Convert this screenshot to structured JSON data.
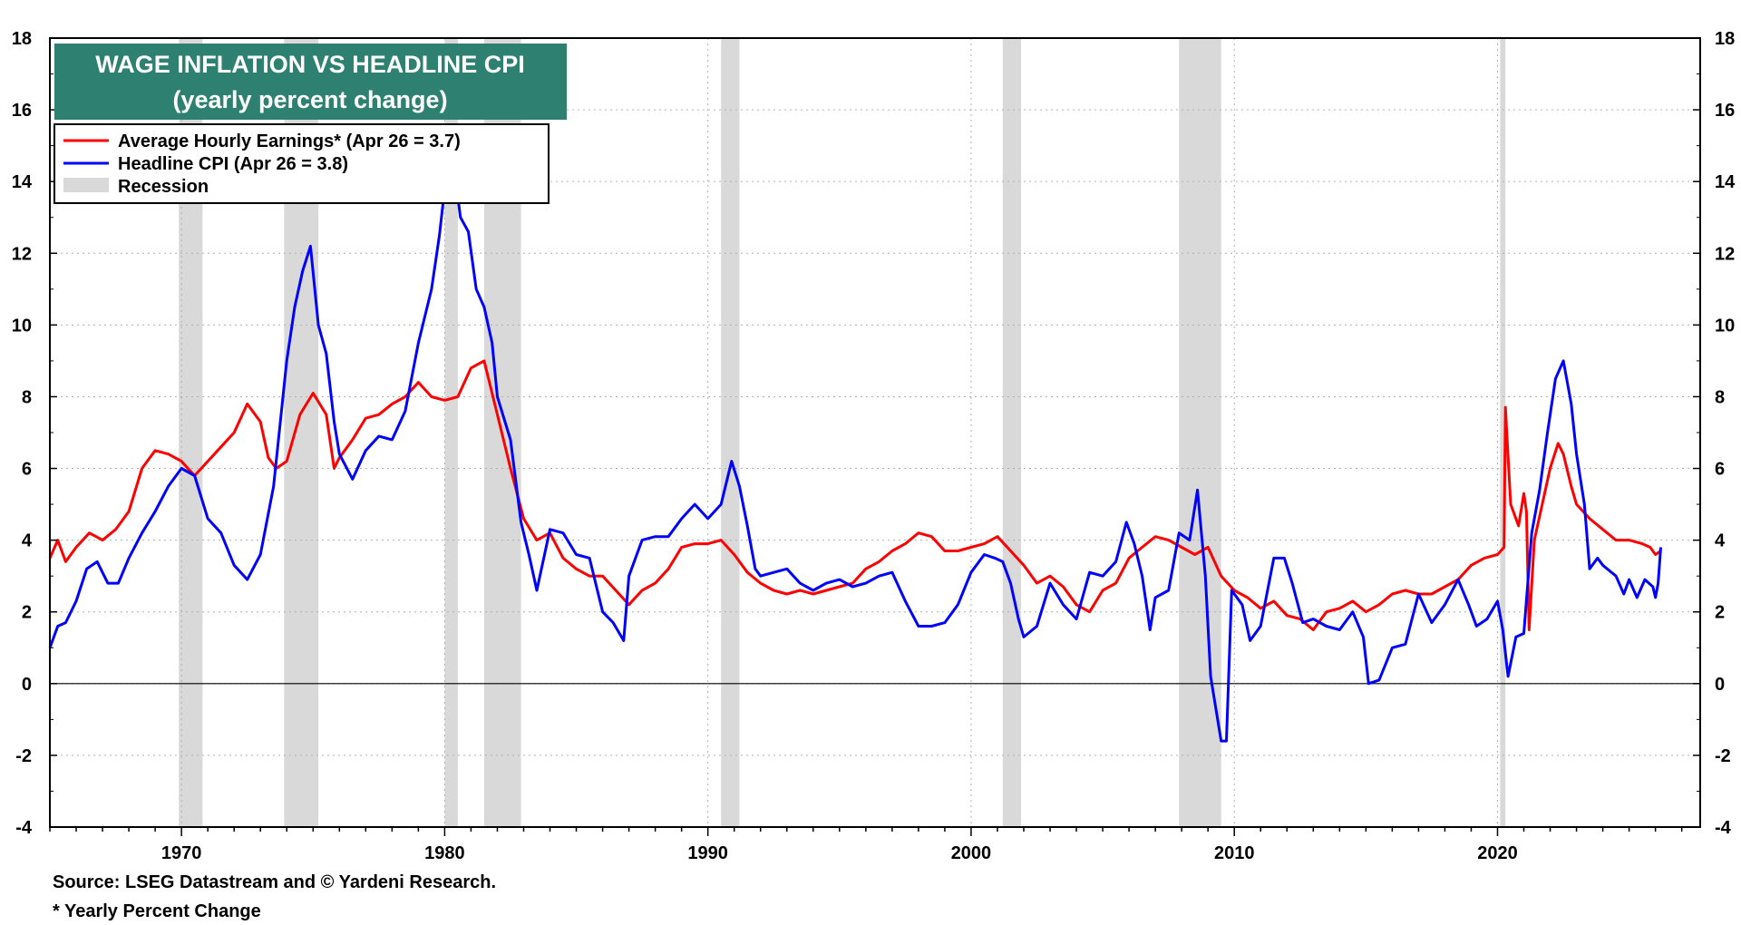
{
  "chart_data": {
    "type": "line",
    "title": "WAGE INFLATION VS HEADLINE CPI",
    "subtitle": "(yearly percent change)",
    "xlim": [
      1965,
      2027.7
    ],
    "ylim": [
      -4,
      18
    ],
    "x_ticks": [
      1970,
      1980,
      1990,
      2000,
      2010,
      2020
    ],
    "y_ticks": [
      -4,
      -2,
      0,
      2,
      4,
      6,
      8,
      10,
      12,
      14,
      16,
      18
    ],
    "grid": true,
    "legend_position": "top-left",
    "recession_label": "Recession",
    "recessions": [
      [
        1969.9,
        1970.8
      ],
      [
        1973.9,
        1975.2
      ],
      [
        1980.0,
        1980.5
      ],
      [
        1981.5,
        1982.9
      ],
      [
        1990.5,
        1991.2
      ],
      [
        2001.2,
        2001.9
      ],
      [
        2007.9,
        2009.5
      ],
      [
        2020.1,
        2020.3
      ]
    ],
    "colors": {
      "wage": "#ff0000",
      "cpi": "#0000ff",
      "recession": "#d9d9d9",
      "title_bg": "#2e8070"
    },
    "series": [
      {
        "name": "Average Hourly Earnings* (Apr 26 = 3.7)",
        "key": "wage",
        "points": [
          [
            1965.0,
            3.5
          ],
          [
            1965.3,
            4.0
          ],
          [
            1965.6,
            3.4
          ],
          [
            1966.0,
            3.8
          ],
          [
            1966.5,
            4.2
          ],
          [
            1967.0,
            4.0
          ],
          [
            1967.5,
            4.3
          ],
          [
            1968.0,
            4.8
          ],
          [
            1968.5,
            6.0
          ],
          [
            1969.0,
            6.5
          ],
          [
            1969.5,
            6.4
          ],
          [
            1970.0,
            6.2
          ],
          [
            1970.5,
            5.8
          ],
          [
            1971.0,
            6.2
          ],
          [
            1971.5,
            6.6
          ],
          [
            1972.0,
            7.0
          ],
          [
            1972.5,
            7.8
          ],
          [
            1973.0,
            7.3
          ],
          [
            1973.3,
            6.3
          ],
          [
            1973.6,
            6.0
          ],
          [
            1974.0,
            6.2
          ],
          [
            1974.5,
            7.5
          ],
          [
            1975.0,
            8.1
          ],
          [
            1975.5,
            7.5
          ],
          [
            1975.8,
            6.0
          ],
          [
            1976.0,
            6.3
          ],
          [
            1976.5,
            6.8
          ],
          [
            1977.0,
            7.4
          ],
          [
            1977.5,
            7.5
          ],
          [
            1978.0,
            7.8
          ],
          [
            1978.5,
            8.0
          ],
          [
            1979.0,
            8.4
          ],
          [
            1979.5,
            8.0
          ],
          [
            1980.0,
            7.9
          ],
          [
            1980.5,
            8.0
          ],
          [
            1981.0,
            8.8
          ],
          [
            1981.5,
            9.0
          ],
          [
            1982.0,
            7.5
          ],
          [
            1982.5,
            6.0
          ],
          [
            1983.0,
            4.6
          ],
          [
            1983.5,
            4.0
          ],
          [
            1984.0,
            4.2
          ],
          [
            1984.5,
            3.5
          ],
          [
            1985.0,
            3.2
          ],
          [
            1985.5,
            3.0
          ],
          [
            1986.0,
            3.0
          ],
          [
            1986.5,
            2.6
          ],
          [
            1987.0,
            2.2
          ],
          [
            1987.5,
            2.6
          ],
          [
            1988.0,
            2.8
          ],
          [
            1988.5,
            3.2
          ],
          [
            1989.0,
            3.8
          ],
          [
            1989.5,
            3.9
          ],
          [
            1990.0,
            3.9
          ],
          [
            1990.5,
            4.0
          ],
          [
            1991.0,
            3.6
          ],
          [
            1991.5,
            3.1
          ],
          [
            1992.0,
            2.8
          ],
          [
            1992.5,
            2.6
          ],
          [
            1993.0,
            2.5
          ],
          [
            1993.5,
            2.6
          ],
          [
            1994.0,
            2.5
          ],
          [
            1994.5,
            2.6
          ],
          [
            1995.0,
            2.7
          ],
          [
            1995.5,
            2.8
          ],
          [
            1996.0,
            3.2
          ],
          [
            1996.5,
            3.4
          ],
          [
            1997.0,
            3.7
          ],
          [
            1997.5,
            3.9
          ],
          [
            1998.0,
            4.2
          ],
          [
            1998.5,
            4.1
          ],
          [
            1999.0,
            3.7
          ],
          [
            1999.5,
            3.7
          ],
          [
            2000.0,
            3.8
          ],
          [
            2000.5,
            3.9
          ],
          [
            2001.0,
            4.1
          ],
          [
            2001.5,
            3.7
          ],
          [
            2002.0,
            3.3
          ],
          [
            2002.5,
            2.8
          ],
          [
            2003.0,
            3.0
          ],
          [
            2003.5,
            2.7
          ],
          [
            2004.0,
            2.2
          ],
          [
            2004.5,
            2.0
          ],
          [
            2005.0,
            2.6
          ],
          [
            2005.5,
            2.8
          ],
          [
            2006.0,
            3.5
          ],
          [
            2006.5,
            3.8
          ],
          [
            2007.0,
            4.1
          ],
          [
            2007.5,
            4.0
          ],
          [
            2008.0,
            3.8
          ],
          [
            2008.5,
            3.6
          ],
          [
            2009.0,
            3.8
          ],
          [
            2009.5,
            3.0
          ],
          [
            2010.0,
            2.6
          ],
          [
            2010.5,
            2.4
          ],
          [
            2011.0,
            2.1
          ],
          [
            2011.5,
            2.3
          ],
          [
            2012.0,
            1.9
          ],
          [
            2012.5,
            1.8
          ],
          [
            2013.0,
            1.5
          ],
          [
            2013.5,
            2.0
          ],
          [
            2014.0,
            2.1
          ],
          [
            2014.5,
            2.3
          ],
          [
            2015.0,
            2.0
          ],
          [
            2015.5,
            2.2
          ],
          [
            2016.0,
            2.5
          ],
          [
            2016.5,
            2.6
          ],
          [
            2017.0,
            2.5
          ],
          [
            2017.5,
            2.5
          ],
          [
            2018.0,
            2.7
          ],
          [
            2018.5,
            2.9
          ],
          [
            2019.0,
            3.3
          ],
          [
            2019.5,
            3.5
          ],
          [
            2020.0,
            3.6
          ],
          [
            2020.25,
            3.8
          ],
          [
            2020.3,
            7.7
          ],
          [
            2020.5,
            5.0
          ],
          [
            2020.8,
            4.4
          ],
          [
            2021.0,
            5.3
          ],
          [
            2021.1,
            4.8
          ],
          [
            2021.2,
            1.5
          ],
          [
            2021.4,
            4.0
          ],
          [
            2021.7,
            5.0
          ],
          [
            2022.0,
            6.0
          ],
          [
            2022.3,
            6.7
          ],
          [
            2022.5,
            6.4
          ],
          [
            2022.8,
            5.5
          ],
          [
            2023.0,
            5.0
          ],
          [
            2023.5,
            4.6
          ],
          [
            2024.0,
            4.3
          ],
          [
            2024.5,
            4.0
          ],
          [
            2025.0,
            4.0
          ],
          [
            2025.5,
            3.9
          ],
          [
            2025.8,
            3.8
          ],
          [
            2026.0,
            3.6
          ],
          [
            2026.2,
            3.7
          ]
        ]
      },
      {
        "name": "Headline CPI (Apr 26 = 3.8)",
        "key": "cpi",
        "points": [
          [
            1965.0,
            1.0
          ],
          [
            1965.3,
            1.6
          ],
          [
            1965.6,
            1.7
          ],
          [
            1966.0,
            2.3
          ],
          [
            1966.4,
            3.2
          ],
          [
            1966.8,
            3.4
          ],
          [
            1967.2,
            2.8
          ],
          [
            1967.6,
            2.8
          ],
          [
            1968.0,
            3.5
          ],
          [
            1968.5,
            4.2
          ],
          [
            1969.0,
            4.8
          ],
          [
            1969.5,
            5.5
          ],
          [
            1970.0,
            6.0
          ],
          [
            1970.5,
            5.8
          ],
          [
            1971.0,
            4.6
          ],
          [
            1971.5,
            4.2
          ],
          [
            1972.0,
            3.3
          ],
          [
            1972.5,
            2.9
          ],
          [
            1973.0,
            3.6
          ],
          [
            1973.5,
            5.5
          ],
          [
            1974.0,
            9.0
          ],
          [
            1974.3,
            10.5
          ],
          [
            1974.6,
            11.5
          ],
          [
            1974.9,
            12.2
          ],
          [
            1975.2,
            10.0
          ],
          [
            1975.5,
            9.2
          ],
          [
            1975.8,
            7.3
          ],
          [
            1976.0,
            6.4
          ],
          [
            1976.5,
            5.7
          ],
          [
            1977.0,
            6.5
          ],
          [
            1977.5,
            6.9
          ],
          [
            1978.0,
            6.8
          ],
          [
            1978.5,
            7.6
          ],
          [
            1979.0,
            9.5
          ],
          [
            1979.5,
            11.0
          ],
          [
            1979.8,
            12.5
          ],
          [
            1980.0,
            13.8
          ],
          [
            1980.3,
            14.7
          ],
          [
            1980.6,
            13.0
          ],
          [
            1980.9,
            12.6
          ],
          [
            1981.2,
            11.0
          ],
          [
            1981.5,
            10.5
          ],
          [
            1981.8,
            9.5
          ],
          [
            1982.0,
            8.0
          ],
          [
            1982.5,
            6.8
          ],
          [
            1982.9,
            4.5
          ],
          [
            1983.2,
            3.6
          ],
          [
            1983.5,
            2.6
          ],
          [
            1984.0,
            4.3
          ],
          [
            1984.5,
            4.2
          ],
          [
            1985.0,
            3.6
          ],
          [
            1985.5,
            3.5
          ],
          [
            1986.0,
            2.0
          ],
          [
            1986.4,
            1.7
          ],
          [
            1986.8,
            1.2
          ],
          [
            1987.0,
            3.0
          ],
          [
            1987.5,
            4.0
          ],
          [
            1988.0,
            4.1
          ],
          [
            1988.5,
            4.1
          ],
          [
            1989.0,
            4.6
          ],
          [
            1989.5,
            5.0
          ],
          [
            1990.0,
            4.6
          ],
          [
            1990.5,
            5.0
          ],
          [
            1990.9,
            6.2
          ],
          [
            1991.2,
            5.5
          ],
          [
            1991.5,
            4.4
          ],
          [
            1991.8,
            3.2
          ],
          [
            1992.0,
            3.0
          ],
          [
            1992.5,
            3.1
          ],
          [
            1993.0,
            3.2
          ],
          [
            1993.5,
            2.8
          ],
          [
            1994.0,
            2.6
          ],
          [
            1994.5,
            2.8
          ],
          [
            1995.0,
            2.9
          ],
          [
            1995.5,
            2.7
          ],
          [
            1996.0,
            2.8
          ],
          [
            1996.5,
            3.0
          ],
          [
            1997.0,
            3.1
          ],
          [
            1997.5,
            2.3
          ],
          [
            1998.0,
            1.6
          ],
          [
            1998.5,
            1.6
          ],
          [
            1999.0,
            1.7
          ],
          [
            1999.5,
            2.2
          ],
          [
            2000.0,
            3.1
          ],
          [
            2000.5,
            3.6
          ],
          [
            2000.9,
            3.5
          ],
          [
            2001.2,
            3.4
          ],
          [
            2001.5,
            2.8
          ],
          [
            2001.8,
            1.8
          ],
          [
            2002.0,
            1.3
          ],
          [
            2002.5,
            1.6
          ],
          [
            2003.0,
            2.8
          ],
          [
            2003.5,
            2.2
          ],
          [
            2004.0,
            1.8
          ],
          [
            2004.5,
            3.1
          ],
          [
            2005.0,
            3.0
          ],
          [
            2005.5,
            3.4
          ],
          [
            2005.9,
            4.5
          ],
          [
            2006.2,
            3.9
          ],
          [
            2006.5,
            3.0
          ],
          [
            2006.8,
            1.5
          ],
          [
            2007.0,
            2.4
          ],
          [
            2007.5,
            2.6
          ],
          [
            2007.9,
            4.2
          ],
          [
            2008.3,
            4.0
          ],
          [
            2008.6,
            5.4
          ],
          [
            2008.9,
            3.0
          ],
          [
            2009.1,
            0.2
          ],
          [
            2009.5,
            -1.6
          ],
          [
            2009.7,
            -1.6
          ],
          [
            2009.9,
            2.6
          ],
          [
            2010.3,
            2.2
          ],
          [
            2010.6,
            1.2
          ],
          [
            2011.0,
            1.6
          ],
          [
            2011.5,
            3.5
          ],
          [
            2011.9,
            3.5
          ],
          [
            2012.2,
            2.8
          ],
          [
            2012.6,
            1.7
          ],
          [
            2013.0,
            1.8
          ],
          [
            2013.5,
            1.6
          ],
          [
            2014.0,
            1.5
          ],
          [
            2014.5,
            2.0
          ],
          [
            2014.9,
            1.3
          ],
          [
            2015.1,
            0.0
          ],
          [
            2015.5,
            0.1
          ],
          [
            2016.0,
            1.0
          ],
          [
            2016.5,
            1.1
          ],
          [
            2017.0,
            2.5
          ],
          [
            2017.5,
            1.7
          ],
          [
            2018.0,
            2.2
          ],
          [
            2018.5,
            2.9
          ],
          [
            2018.9,
            2.2
          ],
          [
            2019.2,
            1.6
          ],
          [
            2019.6,
            1.8
          ],
          [
            2020.0,
            2.3
          ],
          [
            2020.2,
            1.5
          ],
          [
            2020.4,
            0.2
          ],
          [
            2020.7,
            1.3
          ],
          [
            2021.0,
            1.4
          ],
          [
            2021.3,
            4.2
          ],
          [
            2021.6,
            5.4
          ],
          [
            2021.9,
            7.0
          ],
          [
            2022.2,
            8.5
          ],
          [
            2022.5,
            9.0
          ],
          [
            2022.8,
            7.8
          ],
          [
            2023.0,
            6.4
          ],
          [
            2023.3,
            5.0
          ],
          [
            2023.5,
            3.2
          ],
          [
            2023.8,
            3.5
          ],
          [
            2024.0,
            3.3
          ],
          [
            2024.5,
            3.0
          ],
          [
            2024.8,
            2.5
          ],
          [
            2025.0,
            2.9
          ],
          [
            2025.3,
            2.4
          ],
          [
            2025.6,
            2.9
          ],
          [
            2025.9,
            2.7
          ],
          [
            2026.0,
            2.4
          ],
          [
            2026.1,
            2.8
          ],
          [
            2026.2,
            3.8
          ]
        ]
      }
    ],
    "legend": [
      "Average Hourly Earnings* (Apr 26 = 3.7)",
      "Headline CPI (Apr 26 = 3.8)",
      "Recession"
    ]
  },
  "footer": {
    "source": "Source: LSEG Datastream and © Yardeni Research.",
    "note": "* Yearly Percent Change"
  }
}
